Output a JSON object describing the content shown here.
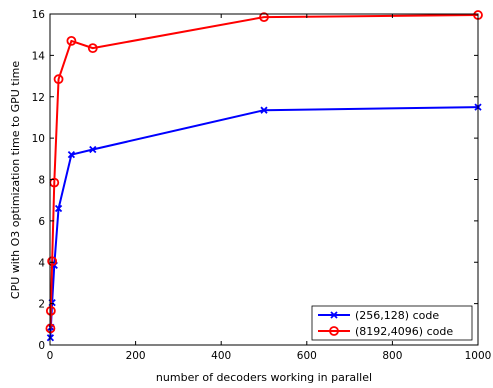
{
  "chart_data": {
    "type": "line",
    "title": "",
    "xlabel": "number of decoders working in parallel",
    "ylabel": "CPU with O3 optimization time to GPU time",
    "xlim": [
      0,
      1000
    ],
    "ylim": [
      0,
      16
    ],
    "x_ticks": [
      0,
      200,
      400,
      600,
      800,
      1000
    ],
    "y_ticks": [
      0,
      2,
      4,
      6,
      8,
      10,
      12,
      14,
      16
    ],
    "grid": false,
    "legend_position": "bottom-right",
    "series": [
      {
        "name": "(256,128) code",
        "color": "#0000ff",
        "marker": "x",
        "x": [
          1,
          2,
          5,
          10,
          20,
          50,
          100,
          500,
          1000
        ],
        "y": [
          0.35,
          0.85,
          2.05,
          3.85,
          6.6,
          9.2,
          9.45,
          11.35,
          11.5
        ]
      },
      {
        "name": "(8192,4096) code",
        "color": "#ff0000",
        "marker": "o",
        "x": [
          1,
          2,
          5,
          10,
          20,
          50,
          100,
          500,
          1000
        ],
        "y": [
          0.8,
          1.65,
          4.05,
          7.85,
          12.85,
          14.7,
          14.35,
          15.85,
          15.95
        ]
      }
    ]
  }
}
